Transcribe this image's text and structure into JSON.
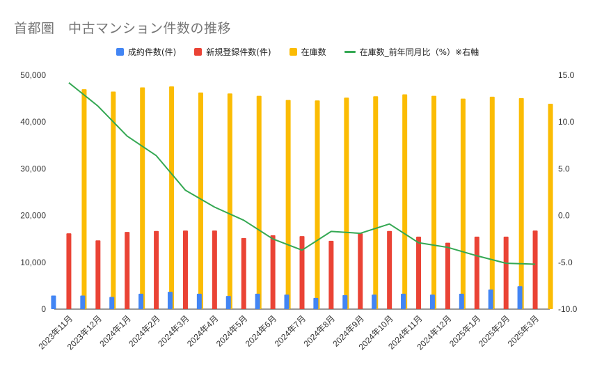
{
  "chart_data": {
    "type": "bar",
    "title": "首都圏　中古マンション件数の推移",
    "categories": [
      "2023年11月",
      "2023年12月",
      "2024年1月",
      "2024年2月",
      "2024年3月",
      "2024年4月",
      "2024年5月",
      "2024年6月",
      "2024年7月",
      "2024年8月",
      "2024年9月",
      "2024年10月",
      "2024年11月",
      "2024年12月",
      "2025年1月",
      "2025年2月",
      "2025年3月"
    ],
    "series": [
      {
        "name": "成約件数(件)",
        "type": "bar",
        "axis": "left",
        "color": "#4285f4",
        "values": [
          2900,
          2900,
          2600,
          3300,
          3700,
          3300,
          2800,
          3300,
          3100,
          2400,
          3000,
          3100,
          3300,
          3100,
          3300,
          4200,
          4900
        ]
      },
      {
        "name": "新規登録件数(件)",
        "type": "bar",
        "axis": "left",
        "color": "#ea4335",
        "values": [
          16200,
          14700,
          16500,
          16700,
          16800,
          16800,
          15200,
          15800,
          15600,
          14600,
          16200,
          16700,
          15500,
          14200,
          15500,
          15500,
          16800
        ]
      },
      {
        "name": "在庫数",
        "type": "bar",
        "axis": "left",
        "color": "#fbbc04",
        "values": [
          47000,
          46500,
          47400,
          47600,
          46300,
          46100,
          45600,
          44700,
          44600,
          45200,
          45500,
          45900,
          45600,
          45000,
          45400,
          45100,
          43900
        ]
      },
      {
        "name": "在庫数_前年同月比（%）※右軸",
        "type": "line",
        "axis": "right",
        "color": "#34a853",
        "values": [
          14.2,
          11.7,
          8.5,
          6.4,
          2.7,
          0.9,
          -0.5,
          -2.5,
          -3.7,
          -1.7,
          -1.9,
          -0.9,
          -2.9,
          -3.4,
          -4.3,
          -5.1,
          -5.2
        ]
      }
    ],
    "y_left": {
      "min": 0,
      "max": 50000,
      "ticks": [
        "0",
        "10,000",
        "20,000",
        "30,000",
        "40,000",
        "50,000"
      ]
    },
    "y_right": {
      "min": -10.0,
      "max": 15.0,
      "ticks": [
        "-10.0",
        "-5.0",
        "0.0",
        "5.0",
        "10.0",
        "15.0"
      ]
    },
    "legend_position": "top",
    "grid": false
  }
}
